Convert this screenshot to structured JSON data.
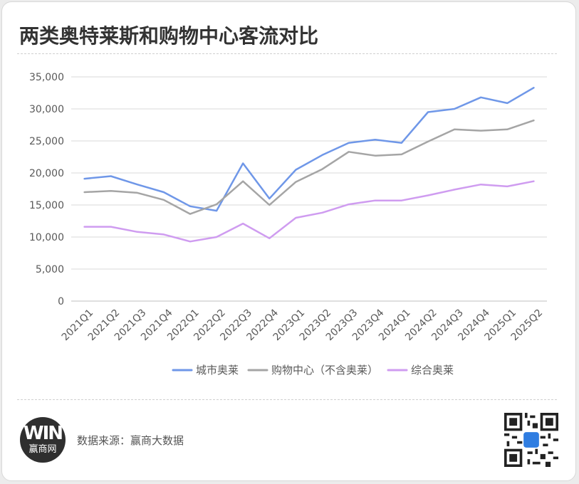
{
  "title": "两类奥特莱斯和购物中心客流对比",
  "footer": {
    "logo_mark": "WIN",
    "logo_name": "赢商网",
    "source_label": "数据来源：",
    "source_name": "赢商大数据"
  },
  "colors": {
    "city_outlet": "#6f97e8",
    "mall": "#a5a5a5",
    "complex_outlet": "#cf9cf0",
    "grid": "#d9d9d9",
    "text": "#595959"
  },
  "chart_data": {
    "type": "line",
    "title": "两类奥特莱斯和购物中心客流对比",
    "xlabel": "",
    "ylabel": "",
    "categories": [
      "2021Q1",
      "2021Q2",
      "2021Q3",
      "2021Q4",
      "2022Q1",
      "2022Q2",
      "2022Q3",
      "2022Q4",
      "2023Q1",
      "2023Q2",
      "2023Q3",
      "2023Q4",
      "2024Q1",
      "2024Q2",
      "2024Q3",
      "2024Q4",
      "2025Q1",
      "2025Q2"
    ],
    "ylim": [
      0,
      35000
    ],
    "yticks": [
      0,
      5000,
      10000,
      15000,
      20000,
      25000,
      30000,
      35000
    ],
    "ytick_labels": [
      "0",
      "5,000",
      "10,000",
      "15,000",
      "20,000",
      "25,000",
      "30,000",
      "35,000"
    ],
    "grid": "horizontal",
    "legend_position": "bottom",
    "series": [
      {
        "name": "城市奥莱",
        "color": "#6f97e8",
        "values": [
          19100,
          19500,
          18200,
          17000,
          14800,
          14100,
          21500,
          16000,
          20500,
          22800,
          24700,
          25200,
          24700,
          29500,
          30000,
          31800,
          30900,
          33300
        ]
      },
      {
        "name": "购物中心（不含奥莱）",
        "color": "#a5a5a5",
        "values": [
          17000,
          17200,
          16900,
          15800,
          13600,
          15100,
          18700,
          15000,
          18600,
          20600,
          23300,
          22700,
          22900,
          24900,
          26800,
          26600,
          26800,
          28200
        ]
      },
      {
        "name": "综合奥莱",
        "color": "#cf9cf0",
        "values": [
          11600,
          11600,
          10800,
          10400,
          9300,
          10000,
          12100,
          9800,
          13000,
          13800,
          15100,
          15700,
          15700,
          16500,
          17400,
          18200,
          17900,
          18700
        ]
      }
    ]
  }
}
